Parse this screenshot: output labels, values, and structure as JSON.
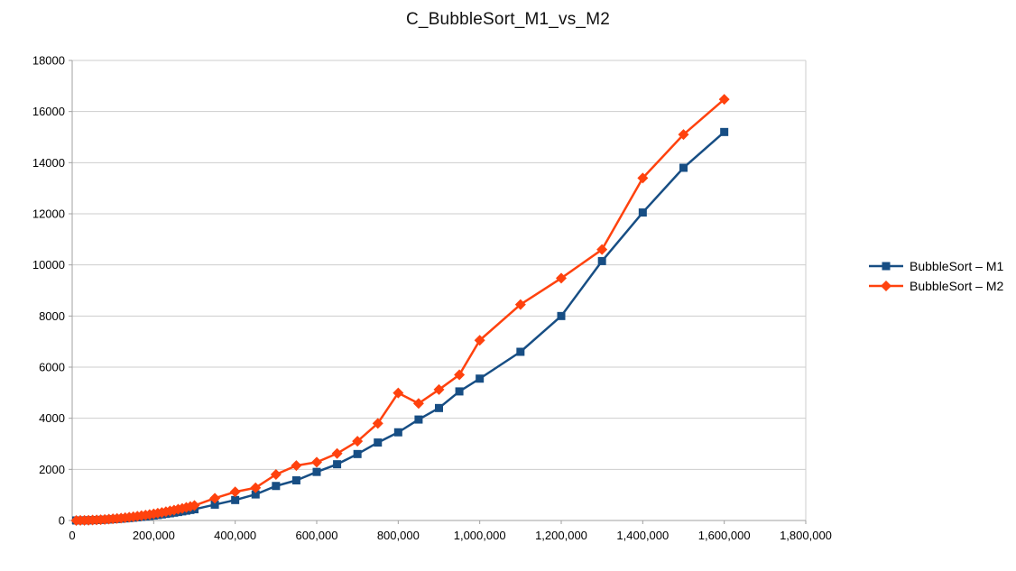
{
  "chart_data": {
    "type": "line",
    "title": "C_BubbleSort_M1_vs_M2",
    "xlabel": "",
    "ylabel": "",
    "xlim": [
      0,
      1800000
    ],
    "ylim": [
      0,
      18000
    ],
    "x_ticks": [
      0,
      200000,
      400000,
      600000,
      800000,
      1000000,
      1200000,
      1400000,
      1600000,
      1800000
    ],
    "x_tick_labels": [
      "0",
      "200,000",
      "400,000",
      "600,000",
      "800,000",
      "1,000,000",
      "1,200,000",
      "1,400,000",
      "1,600,000",
      "1,800,000"
    ],
    "y_ticks": [
      0,
      2000,
      4000,
      6000,
      8000,
      10000,
      12000,
      14000,
      16000,
      18000
    ],
    "y_tick_labels": [
      "0",
      "2000",
      "4000",
      "6000",
      "8000",
      "10000",
      "12000",
      "14000",
      "16000",
      "18000"
    ],
    "grid": "horizontal",
    "legend_position": "right",
    "x": [
      10000,
      20000,
      30000,
      40000,
      50000,
      60000,
      70000,
      80000,
      90000,
      100000,
      110000,
      120000,
      130000,
      140000,
      150000,
      160000,
      170000,
      180000,
      190000,
      200000,
      210000,
      220000,
      230000,
      240000,
      250000,
      260000,
      270000,
      280000,
      290000,
      300000,
      350000,
      400000,
      450000,
      500000,
      550000,
      600000,
      650000,
      700000,
      750000,
      800000,
      850000,
      900000,
      950000,
      1000000,
      1100000,
      1200000,
      1300000,
      1400000,
      1500000,
      1600000
    ],
    "series": [
      {
        "name": "BubbleSort – M1",
        "marker": "square",
        "color": "#174e84",
        "y": [
          1,
          2,
          5,
          8,
          12,
          18,
          24,
          31,
          40,
          49,
          59,
          70,
          83,
          96,
          110,
          125,
          141,
          158,
          177,
          196,
          216,
          237,
          259,
          282,
          306,
          331,
          357,
          384,
          412,
          440,
          620,
          800,
          1020,
          1350,
          1570,
          1900,
          2200,
          2600,
          3050,
          3450,
          3950,
          4400,
          5050,
          5550,
          6600,
          8000,
          10150,
          12050,
          13800,
          15200
        ]
      },
      {
        "name": "BubbleSort – M2",
        "marker": "diamond",
        "color": "#ff420e",
        "y": [
          1,
          3,
          6,
          10,
          16,
          23,
          31,
          41,
          52,
          64,
          78,
          93,
          109,
          127,
          146,
          166,
          188,
          211,
          235,
          260,
          287,
          315,
          344,
          375,
          407,
          440,
          474,
          510,
          547,
          585,
          870,
          1120,
          1280,
          1800,
          2150,
          2280,
          2620,
          3100,
          3800,
          4990,
          4580,
          5120,
          5700,
          7050,
          8450,
          9480,
          10600,
          13400,
          15100,
          16480
        ]
      }
    ],
    "style": {
      "grid_color": "#cdcdcd",
      "axis_color": "#a0a0a0",
      "text_color": "#000000",
      "background": "#ffffff"
    }
  }
}
